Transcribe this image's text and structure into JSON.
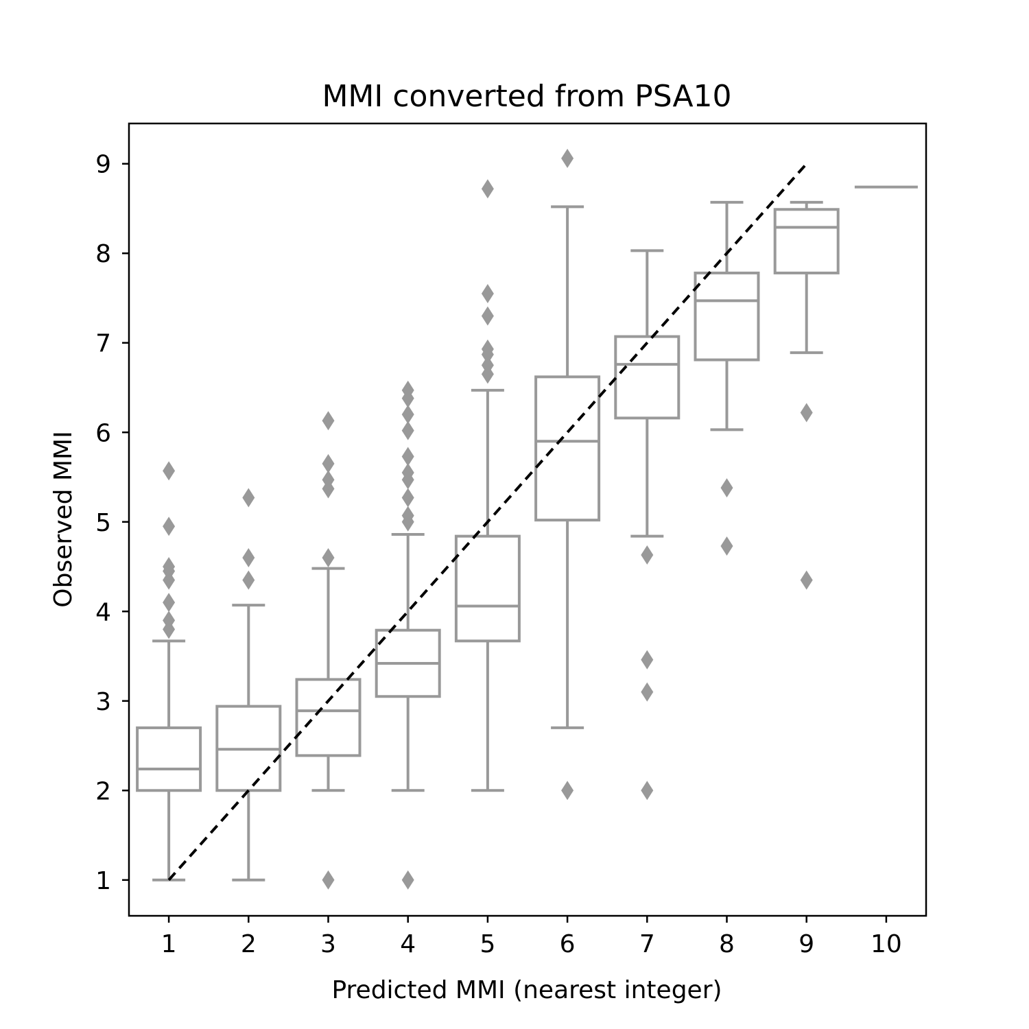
{
  "chart_data": {
    "type": "box",
    "title": "MMI converted from PSA10",
    "xlabel": "Predicted MMI (nearest integer)",
    "ylabel": "Observed MMI",
    "categories": [
      "1",
      "2",
      "3",
      "4",
      "5",
      "6",
      "7",
      "8",
      "9",
      "10"
    ],
    "xlim": [
      0.5,
      10.5
    ],
    "ylim": [
      0.6,
      9.45
    ],
    "x_ticks": [
      "1",
      "2",
      "3",
      "4",
      "5",
      "6",
      "7",
      "8",
      "9",
      "10"
    ],
    "y_ticks": [
      "1",
      "2",
      "3",
      "4",
      "5",
      "6",
      "7",
      "8",
      "9"
    ],
    "grid": false,
    "legend": "none",
    "colors": {
      "box": "#999999",
      "reference_line": "#000000",
      "axes": "#000000"
    },
    "boxes": [
      {
        "x": "1",
        "whisker_low": 1.0,
        "q1": 2.0,
        "median": 2.24,
        "q3": 2.7,
        "whisker_high": 3.67,
        "outliers": [
          3.8,
          3.9,
          4.1,
          4.35,
          4.45,
          4.5,
          4.95,
          5.57
        ]
      },
      {
        "x": "2",
        "whisker_low": 1.0,
        "q1": 2.0,
        "median": 2.46,
        "q3": 2.94,
        "whisker_high": 4.07,
        "outliers": [
          4.35,
          4.6,
          5.27
        ]
      },
      {
        "x": "3",
        "whisker_low": 2.0,
        "q1": 2.39,
        "median": 2.89,
        "q3": 3.24,
        "whisker_high": 4.48,
        "outliers": [
          1.0,
          4.6,
          5.37,
          5.47,
          5.65,
          6.13
        ]
      },
      {
        "x": "4",
        "whisker_low": 2.0,
        "q1": 3.05,
        "median": 3.42,
        "q3": 3.79,
        "whisker_high": 4.86,
        "outliers": [
          1.0,
          5.0,
          5.07,
          5.27,
          5.47,
          5.55,
          5.73,
          6.02,
          6.2,
          6.38,
          6.47
        ]
      },
      {
        "x": "5",
        "whisker_low": 2.0,
        "q1": 3.67,
        "median": 4.06,
        "q3": 4.84,
        "whisker_high": 6.47,
        "outliers": [
          6.65,
          6.75,
          6.87,
          6.93,
          7.3,
          7.55,
          8.72
        ]
      },
      {
        "x": "6",
        "whisker_low": 2.7,
        "q1": 5.02,
        "median": 5.9,
        "q3": 6.62,
        "whisker_high": 8.52,
        "outliers": [
          2.0,
          9.06
        ]
      },
      {
        "x": "7",
        "whisker_low": 4.84,
        "q1": 6.16,
        "median": 6.76,
        "q3": 7.07,
        "whisker_high": 8.03,
        "outliers": [
          2.0,
          3.1,
          3.46,
          4.63
        ]
      },
      {
        "x": "8",
        "whisker_low": 6.03,
        "q1": 6.81,
        "median": 7.47,
        "q3": 7.78,
        "whisker_high": 8.57,
        "outliers": [
          4.73,
          5.38
        ]
      },
      {
        "x": "9",
        "whisker_low": 6.89,
        "q1": 7.78,
        "median": 8.29,
        "q3": 8.49,
        "whisker_high": 8.57,
        "outliers": [
          4.35,
          6.22
        ]
      },
      {
        "x": "10",
        "whisker_low": 8.74,
        "q1": 8.74,
        "median": 8.74,
        "q3": 8.74,
        "whisker_high": 8.74,
        "outliers": []
      }
    ],
    "reference_line": {
      "style": "dashed",
      "x": [
        1,
        9
      ],
      "y": [
        1,
        9
      ]
    }
  }
}
